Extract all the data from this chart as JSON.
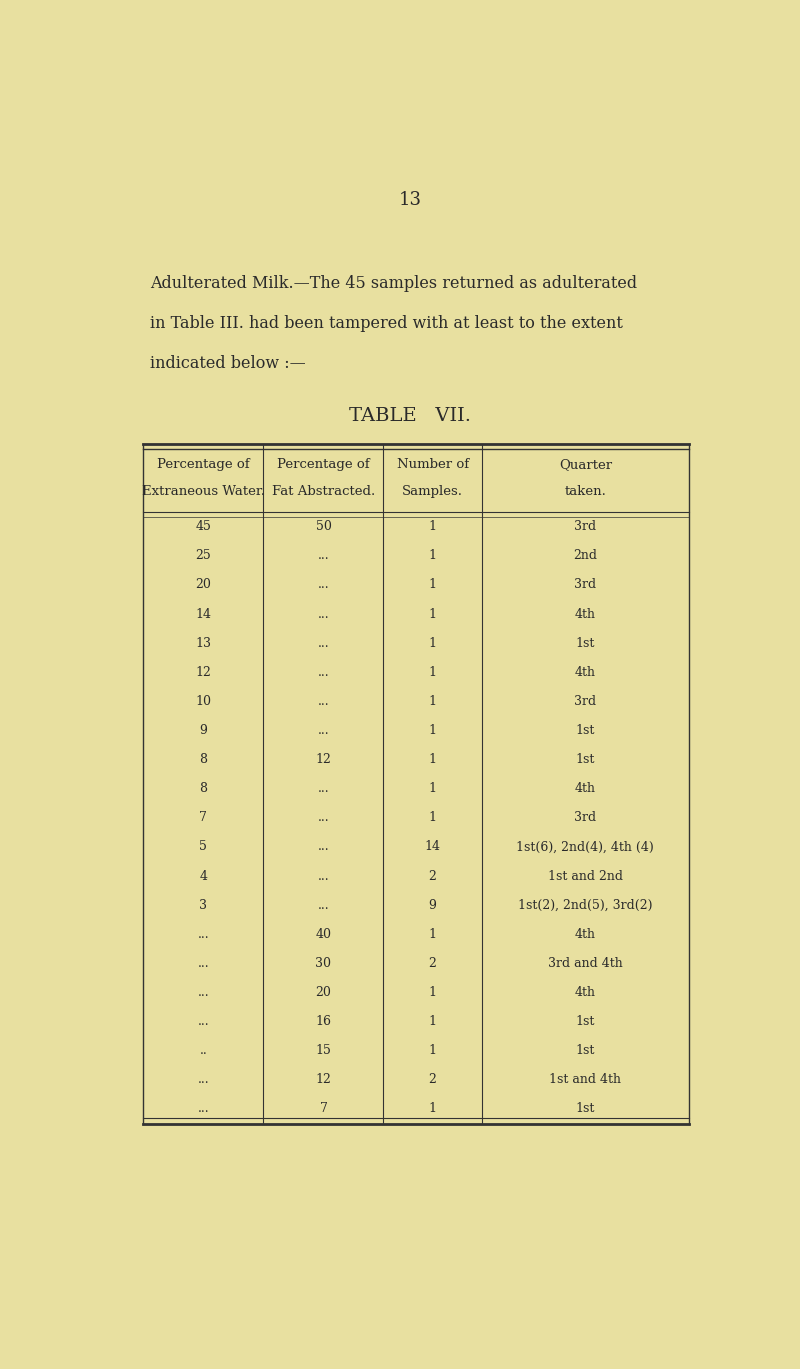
{
  "page_number": "13",
  "bg_color": "#e8e0a0",
  "text_color": "#2a2a2a",
  "intro_text_line1": "Adulterated Milk.—The 45 samples returned as adulterated",
  "intro_text_line2": "in Table III. had been tampered with at least to the extent",
  "intro_text_line3": "indicated below :—",
  "table_title": "TABLE   VII.",
  "col_headers": [
    "Percentage of\nExtraneous Water.",
    "Percentage of\nFat Abstracted.",
    "Number of\nSamples.",
    "Quarter\ntaken."
  ],
  "rows": [
    [
      "45",
      "50",
      "1",
      "3rd"
    ],
    [
      "25",
      "...",
      "1",
      "2nd"
    ],
    [
      "20",
      "...",
      "1",
      "3rd"
    ],
    [
      "14",
      "...",
      "1",
      "4th"
    ],
    [
      "13",
      "...",
      "1",
      "1st"
    ],
    [
      "12",
      "...",
      "1",
      "4th"
    ],
    [
      "10",
      "...",
      "1",
      "3rd"
    ],
    [
      "9",
      "...",
      "1",
      "1st"
    ],
    [
      "8",
      "12",
      "1",
      "1st"
    ],
    [
      "8",
      "...",
      "1",
      "4th"
    ],
    [
      "7",
      "...",
      "1",
      "3rd"
    ],
    [
      "5",
      "...",
      "14",
      "1st(6), 2nd(4), 4th (4)"
    ],
    [
      "4",
      "...",
      "2",
      "1st and 2nd"
    ],
    [
      "3",
      "...",
      "9",
      "1st(2), 2nd(5), 3rd(2)"
    ],
    [
      "...",
      "40",
      "1",
      "4th"
    ],
    [
      "...",
      "30",
      "2",
      "3rd and 4th"
    ],
    [
      "...",
      "20",
      "1",
      "4th"
    ],
    [
      "...",
      "16",
      "1",
      "1st"
    ],
    [
      "..",
      "15",
      "1",
      "1st"
    ],
    [
      "...",
      "12",
      "2",
      "1st and 4th"
    ],
    [
      "...",
      "7",
      "1",
      "1st"
    ]
  ]
}
